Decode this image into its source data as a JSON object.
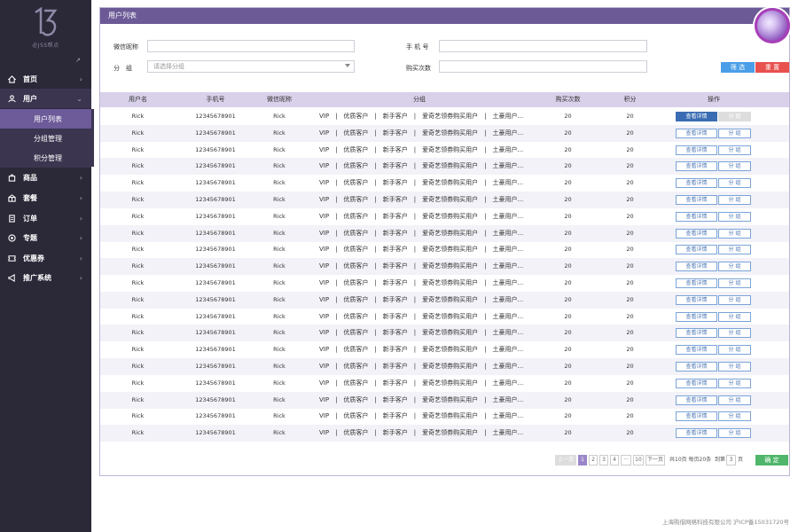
{
  "brand": {
    "text": "必JSS帮点"
  },
  "sidebar": {
    "items": [
      {
        "label": "首页",
        "icon": "home-icon"
      },
      {
        "label": "用户",
        "icon": "user-icon"
      },
      {
        "label": "商品",
        "icon": "product-icon"
      },
      {
        "label": "套餐",
        "icon": "package-icon"
      },
      {
        "label": "订单",
        "icon": "order-icon"
      },
      {
        "label": "专题",
        "icon": "topic-icon"
      },
      {
        "label": "优惠券",
        "icon": "coupon-icon"
      },
      {
        "label": "推广系统",
        "icon": "megaphone-icon"
      }
    ],
    "subitems": [
      {
        "label": "用户列表"
      },
      {
        "label": "分组管理"
      },
      {
        "label": "积分管理"
      }
    ]
  },
  "panel": {
    "title": "用户列表"
  },
  "filters": {
    "wechat_label": "微信昵称",
    "phone_label": "手 机 号",
    "group_label": "分　组",
    "group_placeholder": "请选择分组",
    "purchases_label": "购买次数",
    "filter_button": "筛 选",
    "reset_button": "重 置"
  },
  "table": {
    "headers": [
      "用户名",
      "手机号",
      "微信昵称",
      "分组",
      "购买次数",
      "积分",
      "操作"
    ],
    "row": {
      "name": "Rick",
      "phone": "12345678901",
      "wechat": "Rick",
      "groups": "VIP　|　优质客户　|　新手客户　|　爱奇艺领券购买用户　|　土豪用户...",
      "purchases": "20",
      "points": "20",
      "view_button": "查看详情",
      "group_button": "分 组"
    },
    "row_count": 20
  },
  "pagination": {
    "prev": "上一页",
    "pages": [
      "1",
      "2",
      "3",
      "4",
      "···",
      "10"
    ],
    "next": "下一页",
    "summary": "共10页 每页20条",
    "goto_label": "到第",
    "goto_value": "3",
    "page_suffix": "页",
    "confirm": "确 定"
  },
  "footer": {
    "text": "上海购借网络科技有限公司 沪ICP备15031720号"
  },
  "colors": {
    "sidebar": "#2b2838",
    "accent": "#6b5a96",
    "primary_blue": "#3a6cb3",
    "filter_blue": "#4a9ee8",
    "reset_red": "#e8514e",
    "confirm_green": "#4fb66b"
  }
}
